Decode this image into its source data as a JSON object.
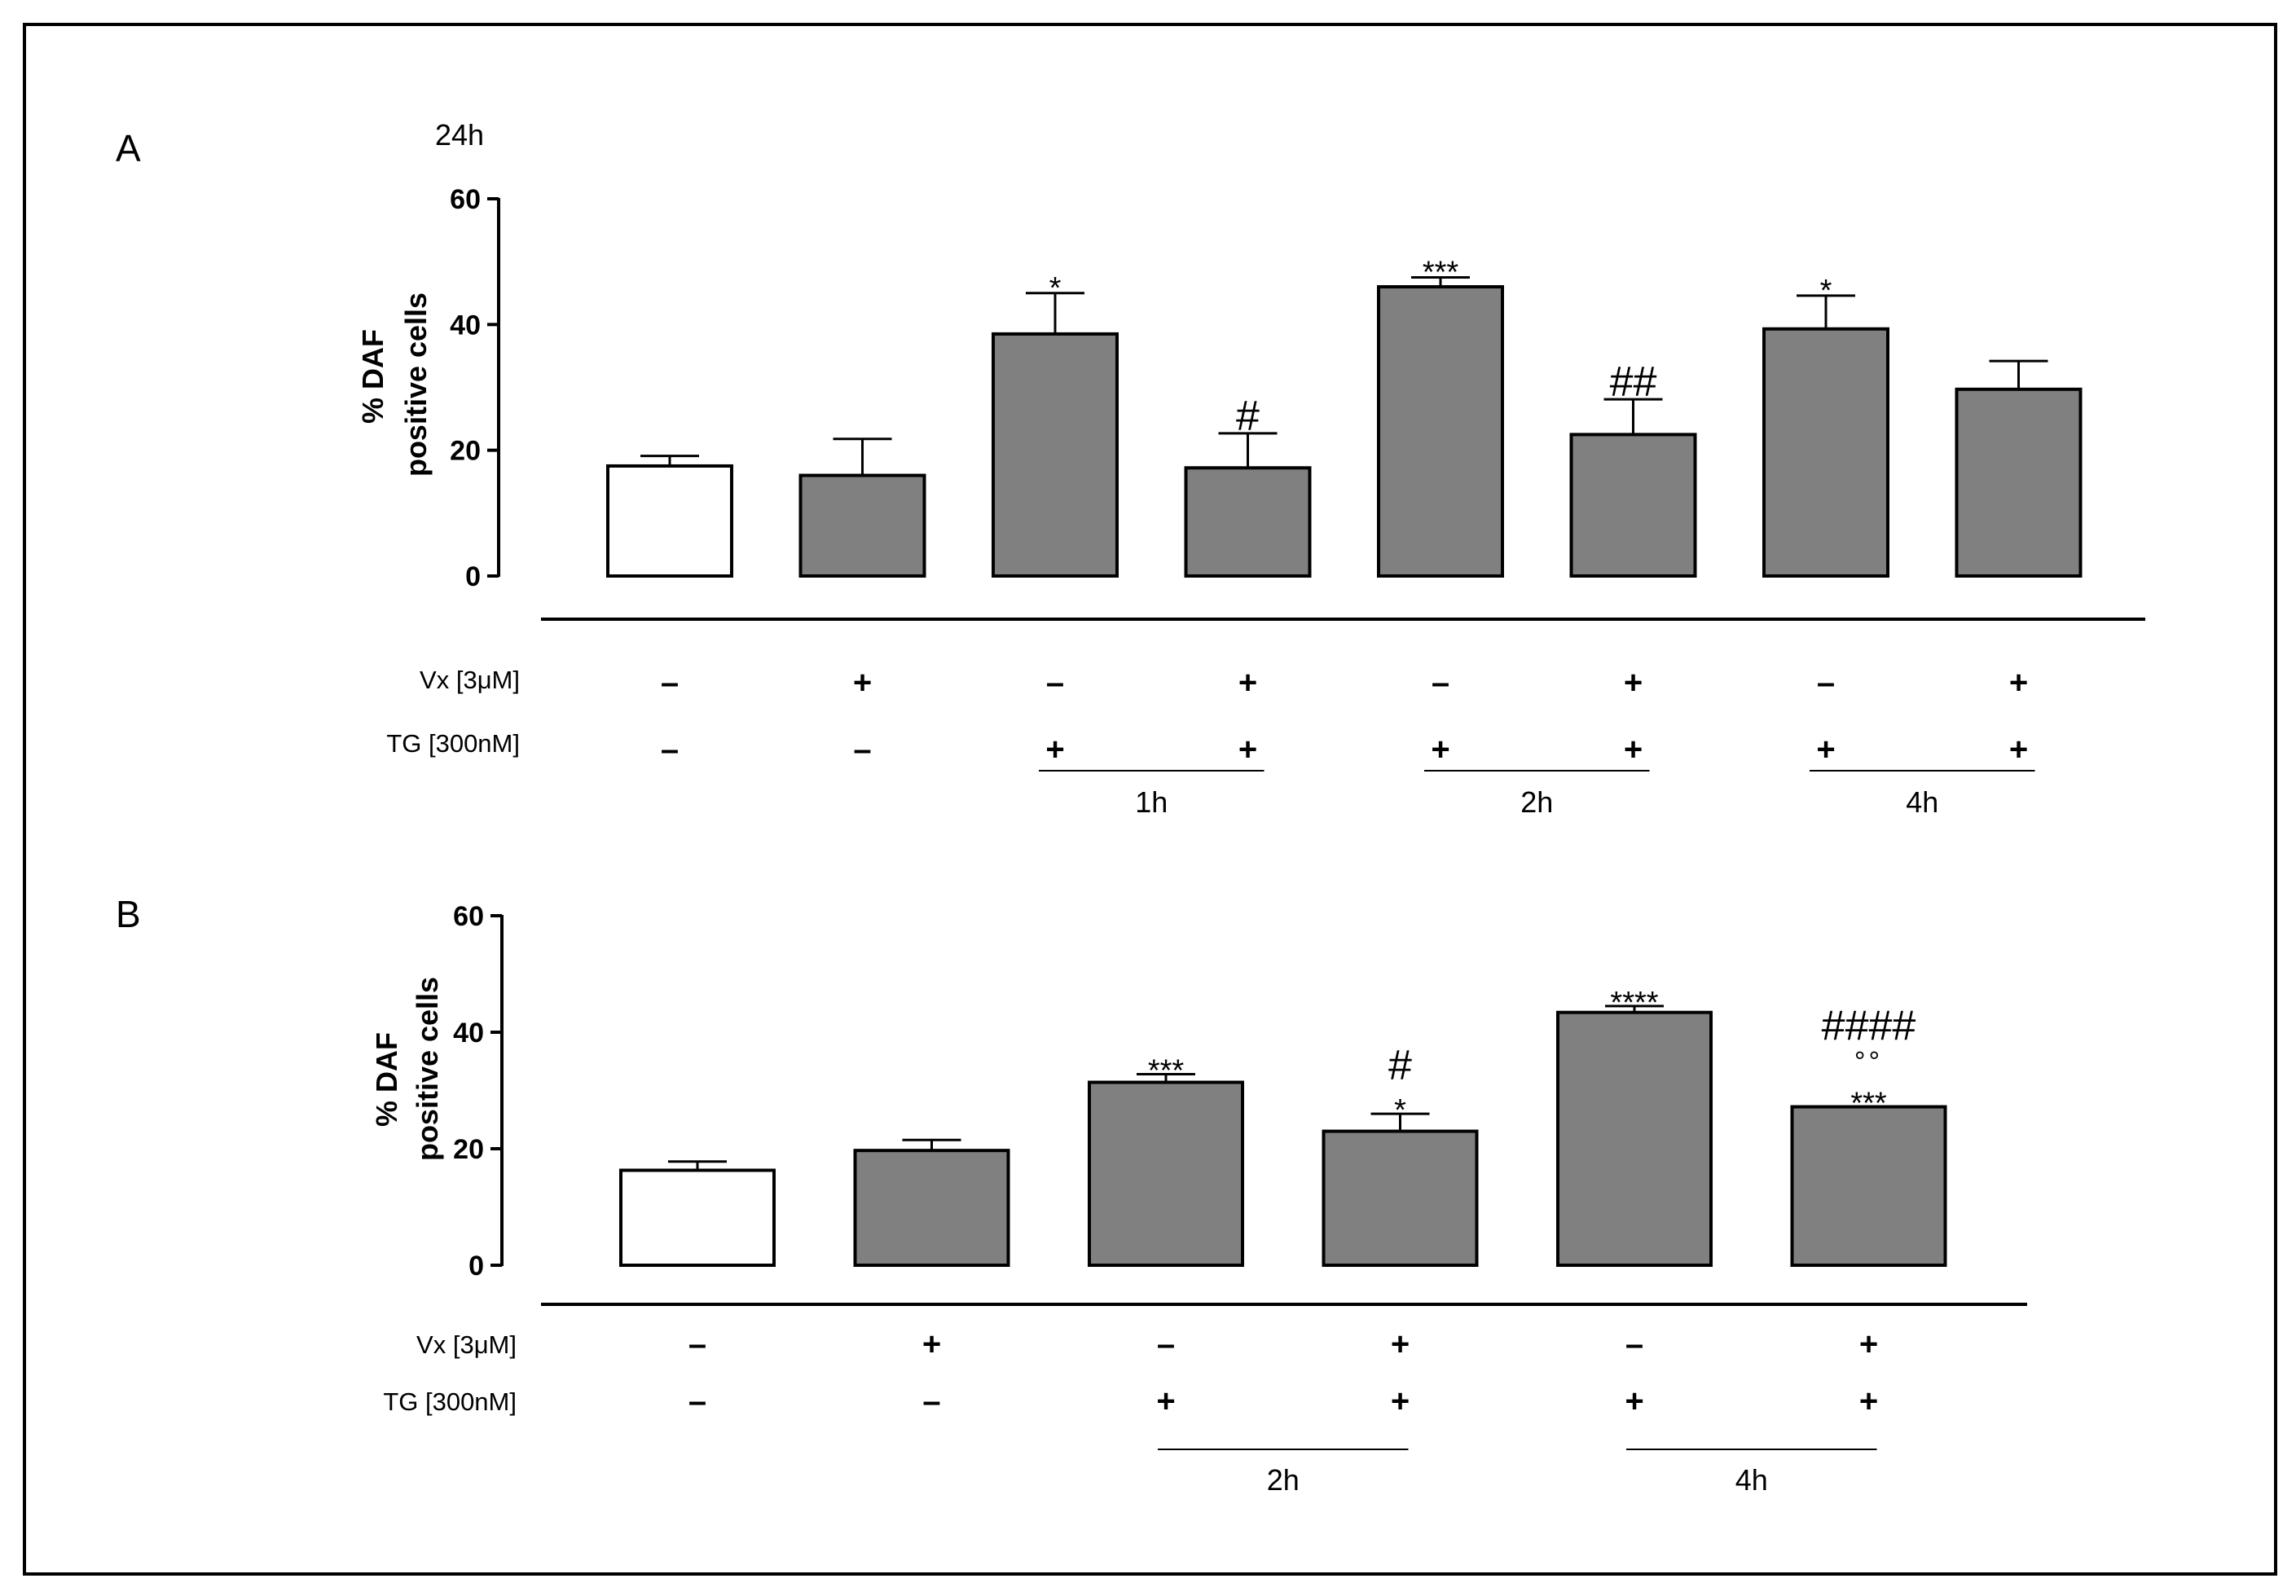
{
  "colors": {
    "control_fill": "#ffffff",
    "bar_fill": "#808080",
    "stroke": "#000000"
  },
  "chart_data": [
    {
      "type": "bar",
      "panel": "A",
      "subtitle": "24h",
      "ylabel_line1": "% DAF",
      "ylabel_line2": "positive cells",
      "ylim": [
        0,
        60
      ],
      "yticks": [
        "0",
        "20",
        "40",
        "60"
      ],
      "series": [
        {
          "name": "% DAF positive cells",
          "values": [
            17.5,
            16,
            38.5,
            17.2,
            46,
            22.5,
            39.3,
            29.7
          ],
          "errors": [
            1.6,
            5.8,
            6.5,
            5.5,
            1.5,
            5.6,
            5.3,
            4.5
          ],
          "fills": [
            "control",
            "treated",
            "treated",
            "treated",
            "treated",
            "treated",
            "treated",
            "treated"
          ]
        }
      ],
      "annotations": [
        {
          "bar": 2,
          "lines": [
            "*"
          ]
        },
        {
          "bar": 3,
          "lines": [
            "#"
          ]
        },
        {
          "bar": 4,
          "lines": [
            "***"
          ]
        },
        {
          "bar": 5,
          "lines": [
            "##"
          ]
        },
        {
          "bar": 6,
          "lines": [
            "*"
          ]
        }
      ],
      "condition_rows": [
        {
          "label": "Vx   [3μM]",
          "signs": [
            "–",
            "+",
            "–",
            "+",
            "–",
            "+",
            "–",
            "+"
          ]
        },
        {
          "label": "TG  [300nM]",
          "signs": [
            "–",
            "–",
            "+",
            "+",
            "+",
            "+",
            "+",
            "+"
          ]
        }
      ],
      "time_groups": [
        {
          "label": "1h",
          "from": 2,
          "to": 3
        },
        {
          "label": "2h",
          "from": 4,
          "to": 5
        },
        {
          "label": "4h",
          "from": 6,
          "to": 7
        }
      ]
    },
    {
      "type": "bar",
      "panel": "B",
      "subtitle": "",
      "ylabel_line1": "% DAF",
      "ylabel_line2": "positive cells",
      "ylim": [
        0,
        60
      ],
      "yticks": [
        "0",
        "20",
        "40",
        "60"
      ],
      "series": [
        {
          "name": "% DAF positive cells",
          "values": [
            16.3,
            19.7,
            31.4,
            23,
            43.4,
            27.2
          ],
          "errors": [
            1.5,
            1.8,
            1.4,
            3,
            1.1,
            0
          ],
          "fills": [
            "control",
            "treated",
            "treated",
            "treated",
            "treated",
            "treated"
          ]
        }
      ],
      "annotations": [
        {
          "bar": 2,
          "lines": [
            "***"
          ]
        },
        {
          "bar": 3,
          "lines": [
            "#",
            "*"
          ]
        },
        {
          "bar": 4,
          "lines": [
            "****"
          ]
        },
        {
          "bar": 5,
          "lines": [
            "####",
            "°°",
            "***"
          ]
        }
      ],
      "condition_rows": [
        {
          "label": "Vx   [3μM]",
          "signs": [
            "–",
            "+",
            "–",
            "+",
            "–",
            "+"
          ]
        },
        {
          "label": "TG  [300nM]",
          "signs": [
            "–",
            "–",
            "+",
            "+",
            "+",
            "+"
          ]
        }
      ],
      "time_groups": [
        {
          "label": "2h",
          "from": 2,
          "to": 3
        },
        {
          "label": "4h",
          "from": 4,
          "to": 5
        }
      ]
    }
  ]
}
